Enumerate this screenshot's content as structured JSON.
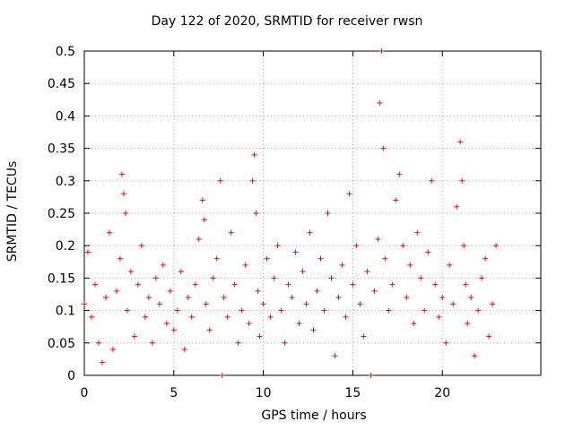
{
  "chart_data": {
    "type": "scatter",
    "title": "Day 122 of 2020, SRMTID for receiver rwsn",
    "xlabel": "GPS time / hours",
    "ylabel": "SRMTID / TECUs",
    "xlim": [
      0,
      25.5
    ],
    "ylim": [
      0,
      0.5
    ],
    "xticks": [
      0,
      5,
      10,
      15,
      20
    ],
    "yticks": [
      0,
      0.05,
      0.1,
      0.15,
      0.2,
      0.25,
      0.3,
      0.35,
      0.4,
      0.45,
      0.5
    ],
    "xtick_labels": [
      "0",
      "5",
      "10",
      "15",
      "20"
    ],
    "ytick_labels": [
      "0",
      "0.05",
      "0.1",
      "0.15",
      "0.2",
      "0.25",
      "0.3",
      "0.35",
      "0.4",
      "0.45",
      "0.5"
    ],
    "grid": true,
    "marker": "+",
    "color": "#ff0000",
    "series": [
      {
        "name": "SRMTID",
        "x": [
          0.0,
          0.2,
          0.4,
          0.6,
          0.8,
          1.0,
          1.2,
          1.4,
          1.6,
          1.8,
          2.0,
          2.1,
          2.2,
          2.3,
          2.4,
          2.6,
          2.8,
          3.0,
          3.2,
          3.4,
          3.6,
          3.8,
          4.0,
          4.2,
          4.4,
          4.6,
          4.8,
          5.0,
          5.2,
          5.4,
          5.6,
          5.8,
          6.0,
          6.2,
          6.4,
          6.6,
          6.7,
          6.8,
          7.0,
          7.2,
          7.4,
          7.6,
          7.7,
          7.8,
          8.0,
          8.2,
          8.4,
          8.6,
          8.8,
          9.0,
          9.2,
          9.4,
          9.5,
          9.6,
          9.7,
          9.8,
          10.0,
          10.2,
          10.4,
          10.6,
          10.8,
          11.0,
          11.2,
          11.4,
          11.6,
          11.8,
          12.0,
          12.2,
          12.4,
          12.6,
          12.8,
          13.0,
          13.2,
          13.4,
          13.6,
          13.8,
          14.0,
          14.2,
          14.4,
          14.6,
          14.8,
          15.0,
          15.2,
          15.4,
          15.6,
          15.8,
          16.0,
          16.2,
          16.4,
          16.5,
          16.6,
          16.7,
          16.8,
          17.0,
          17.2,
          17.4,
          17.6,
          17.8,
          18.0,
          18.2,
          18.4,
          18.6,
          18.8,
          19.0,
          19.2,
          19.4,
          19.6,
          19.8,
          20.0,
          20.2,
          20.4,
          20.6,
          20.8,
          21.0,
          21.1,
          21.2,
          21.3,
          21.4,
          21.6,
          21.8,
          22.0,
          22.2,
          22.4,
          22.6,
          22.8,
          23.0
        ],
        "y": [
          0.11,
          0.19,
          0.09,
          0.14,
          0.05,
          0.02,
          0.12,
          0.22,
          0.04,
          0.13,
          0.18,
          0.31,
          0.28,
          0.25,
          0.1,
          0.16,
          0.06,
          0.14,
          0.2,
          0.09,
          0.12,
          0.05,
          0.15,
          0.11,
          0.17,
          0.08,
          0.13,
          0.07,
          0.1,
          0.16,
          0.04,
          0.12,
          0.09,
          0.14,
          0.21,
          0.27,
          0.24,
          0.11,
          0.07,
          0.15,
          0.18,
          0.3,
          0.0,
          0.12,
          0.09,
          0.22,
          0.14,
          0.05,
          0.1,
          0.17,
          0.08,
          0.3,
          0.34,
          0.25,
          0.13,
          0.06,
          0.11,
          0.18,
          0.09,
          0.15,
          0.2,
          0.1,
          0.05,
          0.14,
          0.12,
          0.19,
          0.08,
          0.16,
          0.11,
          0.22,
          0.07,
          0.13,
          0.18,
          0.1,
          0.25,
          0.15,
          0.03,
          0.12,
          0.17,
          0.09,
          0.28,
          0.14,
          0.2,
          0.11,
          0.06,
          0.16,
          0.0,
          0.13,
          0.21,
          0.42,
          0.5,
          0.35,
          0.18,
          0.1,
          0.14,
          0.27,
          0.31,
          0.2,
          0.12,
          0.17,
          0.08,
          0.22,
          0.15,
          0.1,
          0.19,
          0.3,
          0.14,
          0.09,
          0.12,
          0.05,
          0.17,
          0.11,
          0.26,
          0.36,
          0.3,
          0.2,
          0.14,
          0.08,
          0.12,
          0.03,
          0.1,
          0.15,
          0.18,
          0.06,
          0.11,
          0.2
        ]
      }
    ]
  }
}
